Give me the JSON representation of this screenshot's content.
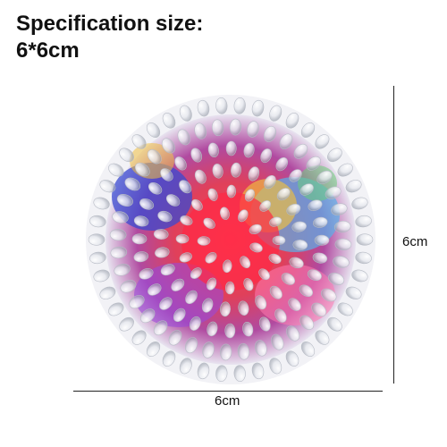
{
  "title": {
    "line1": "Specification size:",
    "line2": "6*6cm"
  },
  "dimensions": {
    "height_label": "6cm",
    "width_label": "6cm"
  },
  "product": {
    "description_icon": "gel-bead-stress-ball",
    "colors": [
      "#e83a4a",
      "#3a4ad0",
      "#f0c040",
      "#5ab0e8",
      "#9a4ad8",
      "#ff7ab0",
      "#6bd07a"
    ]
  }
}
